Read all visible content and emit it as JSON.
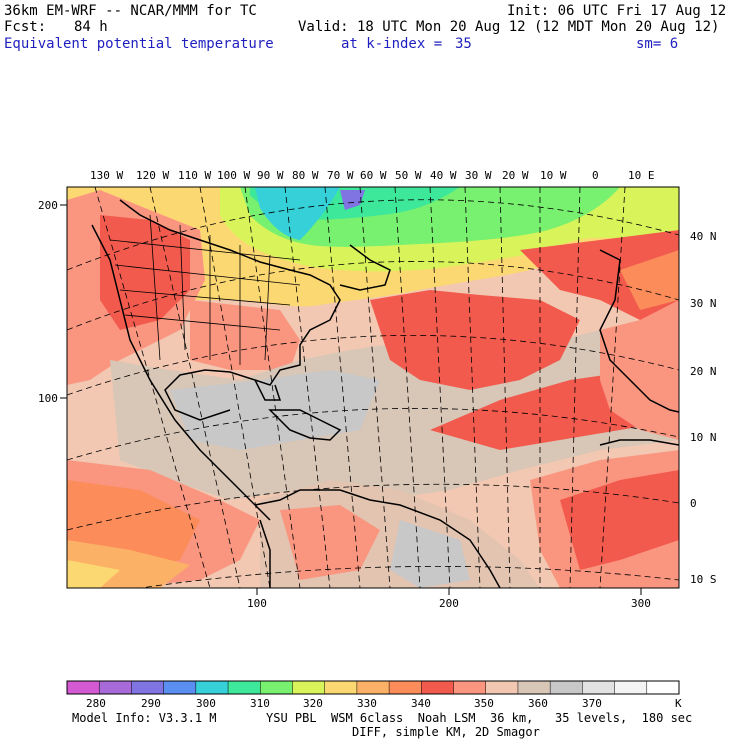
{
  "header": {
    "model_line": "36km EM-WRF -- NCAR/MMM for TC",
    "init_line": "Init: 06 UTC Fri 17 Aug 12",
    "fcst_label": "Fcst:",
    "fcst_value": "84 h",
    "valid_line": "Valid: 18 UTC Mon 20 Aug 12 (12 MDT Mon 20 Aug 12)",
    "field_name": "Equivalent potential temperature",
    "level_text": "at k-index =",
    "level_value": "35",
    "smooth_text": "sm= 6"
  },
  "map": {
    "lon_labels": [
      "130 W",
      "120 W",
      "110 W",
      "100 W",
      "90 W",
      "80 W",
      "70 W",
      "60 W",
      "50 W",
      "40 W",
      "30 W",
      "20 W",
      "10 W",
      "0",
      "10 E"
    ],
    "lat_labels": [
      "40 N",
      "30 N",
      "20 N",
      "10 N",
      "0",
      "10 S"
    ],
    "grid_y_labels": [
      "200",
      "100"
    ],
    "grid_x_labels": [
      "100",
      "200",
      "300"
    ]
  },
  "colorbar": {
    "unit": "K",
    "tick_labels": [
      "280",
      "290",
      "300",
      "310",
      "320",
      "330",
      "340",
      "350",
      "360",
      "370"
    ],
    "colors": [
      "#d45ad4",
      "#a86ad8",
      "#8074e2",
      "#5a8ef0",
      "#36d0d8",
      "#3ee89a",
      "#78f070",
      "#d8f45a",
      "#fcd872",
      "#fcb266",
      "#fc8c5a",
      "#f25a4e",
      "#fa9680",
      "#f2c8b2",
      "#d8c6b6",
      "#c8c8c8",
      "#e2e2e2",
      "#f4f4f4",
      "#ffffff"
    ]
  },
  "footer": {
    "model_info": "Model Info: V3.3.1 M",
    "physics": "YSU PBL  WSM 6class  Noah LSM  36 km,   35 levels,  180 sec",
    "diffusion": "DIFF, simple KM, 2D Smagor"
  }
}
